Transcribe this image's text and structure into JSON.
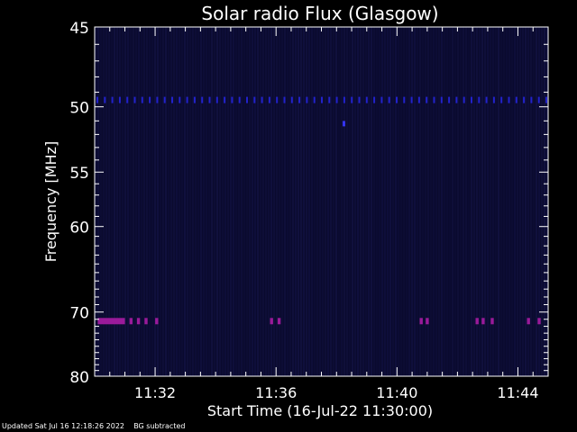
{
  "chart_data": {
    "type": "heatmap",
    "title": "Solar radio Flux (Glasgow)",
    "xlabel": "Start Time (16-Jul-22 11:30:00)",
    "ylabel": "Frequency [MHz]",
    "x_range_minutes": [
      0,
      15
    ],
    "xticks": [
      {
        "label": "11:32",
        "minute": 2
      },
      {
        "label": "11:36",
        "minute": 6
      },
      {
        "label": "11:40",
        "minute": 10
      },
      {
        "label": "11:44",
        "minute": 14
      }
    ],
    "y_scale": "reciprocal",
    "ylim": [
      45,
      80
    ],
    "yticks": [
      45,
      50,
      55,
      60,
      70,
      80
    ],
    "background_color": "#0a0a2e",
    "features": [
      {
        "name": "interference-band",
        "freq_mhz": 49.5,
        "minute_start": 0,
        "minute_end": 15,
        "color": "#2222cc",
        "pattern": "dashed"
      },
      {
        "name": "emission-band",
        "freq_mhz": 71.2,
        "segments": [
          [
            0.1,
            1.0
          ],
          [
            1.15,
            1.25
          ],
          [
            1.4,
            1.5
          ],
          [
            1.65,
            1.75
          ],
          [
            2.0,
            2.1
          ],
          [
            5.8,
            5.9
          ],
          [
            6.05,
            6.15
          ],
          [
            10.75,
            10.85
          ],
          [
            10.95,
            11.05
          ],
          [
            12.6,
            12.7
          ],
          [
            12.8,
            12.9
          ],
          [
            13.1,
            13.2
          ],
          [
            14.3,
            14.4
          ],
          [
            14.65,
            14.75
          ]
        ],
        "color": "#9a1a9a"
      },
      {
        "name": "spot",
        "freq_mhz": 51.2,
        "minute": 8.2,
        "color": "#3333ee"
      }
    ]
  },
  "footer": {
    "updated": "Updated Sat Jul 16 12:18:26 2022",
    "bg_note": "BG subtracted"
  }
}
